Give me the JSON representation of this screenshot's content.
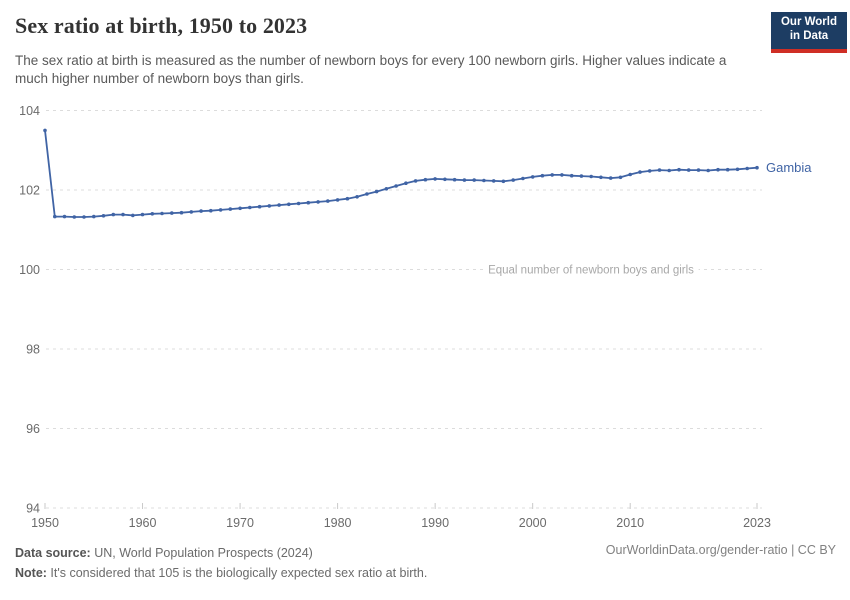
{
  "header": {
    "title": "Sex ratio at birth, 1950 to 2023",
    "subtitle": "The sex ratio at birth is measured as the number of newborn boys for every 100 newborn girls. Higher values indicate a much higher number of newborn boys than girls.",
    "logo": {
      "line1": "Our World",
      "line2": "in Data",
      "bg_color": "#1d3d63",
      "stripe_color": "#cf2e25"
    }
  },
  "chart_data": {
    "type": "line",
    "title": "Sex ratio at birth, 1950 to 2023",
    "xlabel": "",
    "ylabel": "",
    "xlim": [
      1950,
      2023
    ],
    "ylim": [
      94,
      104
    ],
    "xticks": [
      1950,
      1960,
      1970,
      1980,
      1990,
      2000,
      2010,
      2023
    ],
    "yticks": [
      94,
      96,
      98,
      100,
      102,
      104
    ],
    "grid": true,
    "legend_position": "end-of-line",
    "gridline_annotation": {
      "y": 100,
      "text": "Equal number of newborn boys and girls"
    },
    "series": [
      {
        "name": "Gambia",
        "color": "#4064a5",
        "points": [
          [
            1950,
            103.5
          ],
          [
            1951,
            101.33
          ],
          [
            1952,
            101.33
          ],
          [
            1953,
            101.32
          ],
          [
            1954,
            101.32
          ],
          [
            1955,
            101.33
          ],
          [
            1956,
            101.35
          ],
          [
            1957,
            101.38
          ],
          [
            1958,
            101.38
          ],
          [
            1959,
            101.36
          ],
          [
            1960,
            101.38
          ],
          [
            1961,
            101.4
          ],
          [
            1962,
            101.41
          ],
          [
            1963,
            101.42
          ],
          [
            1964,
            101.43
          ],
          [
            1965,
            101.45
          ],
          [
            1966,
            101.47
          ],
          [
            1967,
            101.48
          ],
          [
            1968,
            101.5
          ],
          [
            1969,
            101.52
          ],
          [
            1970,
            101.54
          ],
          [
            1971,
            101.56
          ],
          [
            1972,
            101.58
          ],
          [
            1973,
            101.6
          ],
          [
            1974,
            101.62
          ],
          [
            1975,
            101.64
          ],
          [
            1976,
            101.66
          ],
          [
            1977,
            101.68
          ],
          [
            1978,
            101.7
          ],
          [
            1979,
            101.72
          ],
          [
            1980,
            101.75
          ],
          [
            1981,
            101.78
          ],
          [
            1982,
            101.83
          ],
          [
            1983,
            101.9
          ],
          [
            1984,
            101.96
          ],
          [
            1985,
            102.03
          ],
          [
            1986,
            102.1
          ],
          [
            1987,
            102.17
          ],
          [
            1988,
            102.23
          ],
          [
            1989,
            102.26
          ],
          [
            1990,
            102.28
          ],
          [
            1991,
            102.27
          ],
          [
            1992,
            102.26
          ],
          [
            1993,
            102.25
          ],
          [
            1994,
            102.25
          ],
          [
            1995,
            102.24
          ],
          [
            1996,
            102.23
          ],
          [
            1997,
            102.22
          ],
          [
            1998,
            102.25
          ],
          [
            1999,
            102.29
          ],
          [
            2000,
            102.33
          ],
          [
            2001,
            102.36
          ],
          [
            2002,
            102.38
          ],
          [
            2003,
            102.38
          ],
          [
            2004,
            102.36
          ],
          [
            2005,
            102.35
          ],
          [
            2006,
            102.34
          ],
          [
            2007,
            102.32
          ],
          [
            2008,
            102.3
          ],
          [
            2009,
            102.32
          ],
          [
            2010,
            102.39
          ],
          [
            2011,
            102.45
          ],
          [
            2012,
            102.48
          ],
          [
            2013,
            102.5
          ],
          [
            2014,
            102.49
          ],
          [
            2015,
            102.51
          ],
          [
            2016,
            102.5
          ],
          [
            2017,
            102.5
          ],
          [
            2018,
            102.49
          ],
          [
            2019,
            102.51
          ],
          [
            2020,
            102.51
          ],
          [
            2021,
            102.52
          ],
          [
            2022,
            102.54
          ],
          [
            2023,
            102.56
          ]
        ]
      }
    ]
  },
  "footer": {
    "datasource_label": "Data source:",
    "datasource_value": " UN, World Population Prospects (2024)",
    "note_label": "Note:",
    "note_value": " It's considered that 105 is the biologically expected sex ratio at birth.",
    "link": "OurWorldinData.org/gender-ratio | CC BY"
  }
}
